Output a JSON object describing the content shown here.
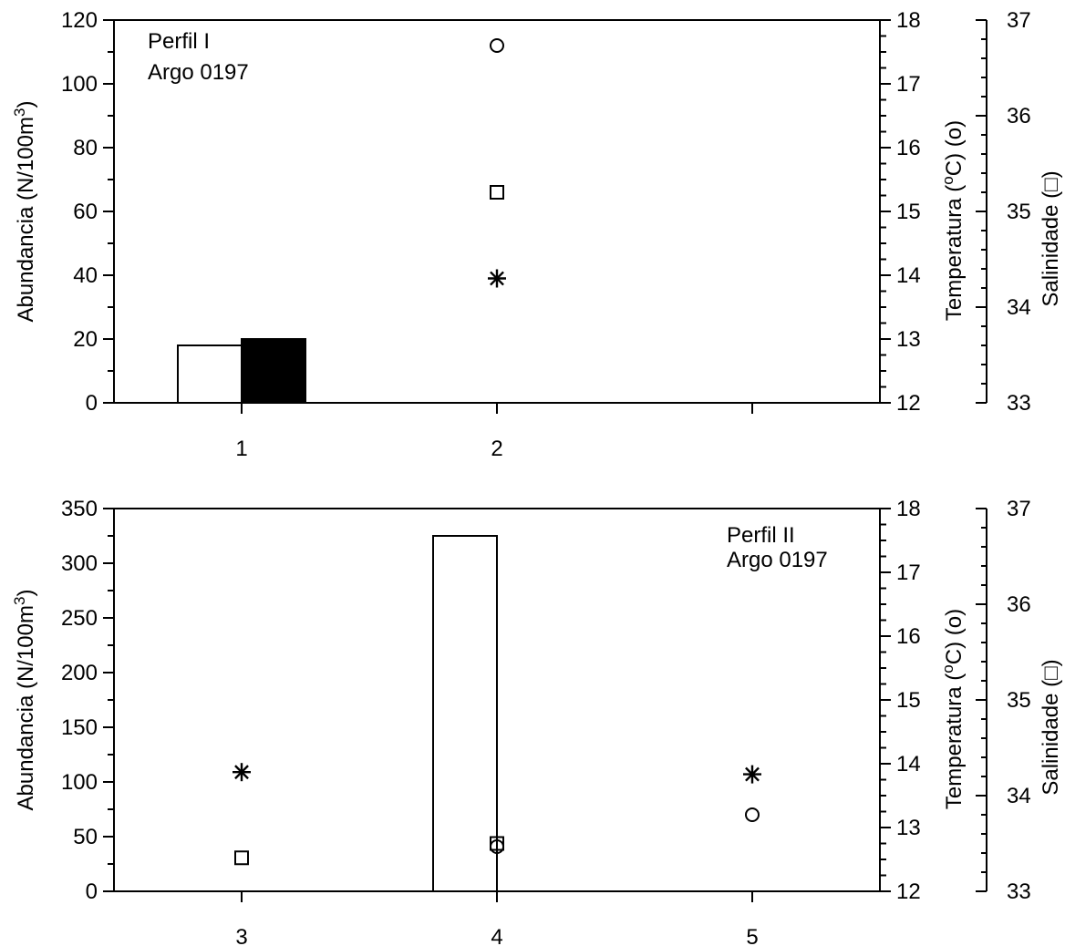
{
  "colors": {
    "ink": "#000000",
    "paper": "#ffffff"
  },
  "chart_data": [
    {
      "type": "bar",
      "annotation": [
        "Perfil I",
        "Argo 0197"
      ],
      "annotation_position": "top-left",
      "x_ticks": [
        "1",
        "2"
      ],
      "x_range": [
        0.5,
        3.5
      ],
      "ylabel": "Abundancia (N/100m3)",
      "ylim": [
        0,
        120
      ],
      "y_ticks": [
        0,
        20,
        40,
        60,
        80,
        100,
        120
      ],
      "y2label": "Temperatura (oC) (o)",
      "y2lim": [
        12,
        18
      ],
      "y2_ticks": [
        12,
        13,
        14,
        15,
        16,
        17,
        18
      ],
      "y3label": "Salinidade (□)",
      "y3lim": [
        33,
        37
      ],
      "y3_ticks": [
        33,
        34,
        35,
        36,
        37
      ],
      "bars": [
        {
          "station": 1,
          "x": 0.75,
          "width": 0.25,
          "value": 18,
          "fill": "white"
        },
        {
          "station": 1,
          "x": 1.0,
          "width": 0.25,
          "value": 20,
          "fill": "black"
        }
      ],
      "temperature": [
        {
          "x": 2,
          "value": 17.6
        }
      ],
      "salinity": [
        {
          "x": 2,
          "value": 35.2
        }
      ],
      "asterisk": [
        {
          "x": 2,
          "value": 39
        }
      ],
      "grid": false
    },
    {
      "type": "bar",
      "annotation": [
        "Perfil II",
        "Argo 0197"
      ],
      "annotation_position": "top-right",
      "x_ticks": [
        "3",
        "4",
        "5"
      ],
      "x_range": [
        2.5,
        5.5
      ],
      "ylabel": "Abundancia (N/100m3)",
      "ylim": [
        0,
        350
      ],
      "y_ticks": [
        0,
        50,
        100,
        150,
        200,
        250,
        300,
        350
      ],
      "y2label": "Temperatura (oC) (o)",
      "y2lim": [
        12,
        18
      ],
      "y2_ticks": [
        12,
        13,
        14,
        15,
        16,
        17,
        18
      ],
      "y3label": "Salinidade (□)",
      "y3lim": [
        33,
        37
      ],
      "y3_ticks": [
        33,
        34,
        35,
        36,
        37
      ],
      "bars": [
        {
          "station": 4,
          "x": 3.75,
          "width": 0.25,
          "value": 325,
          "fill": "white"
        }
      ],
      "temperature": [
        {
          "x": 4,
          "value": 12.7
        },
        {
          "x": 5,
          "value": 13.2
        }
      ],
      "salinity": [
        {
          "x": 3,
          "value": 33.35
        },
        {
          "x": 4,
          "value": 33.5
        }
      ],
      "asterisk": [
        {
          "x": 3,
          "value": 109
        },
        {
          "x": 5,
          "value": 107
        }
      ],
      "grid": false
    }
  ]
}
